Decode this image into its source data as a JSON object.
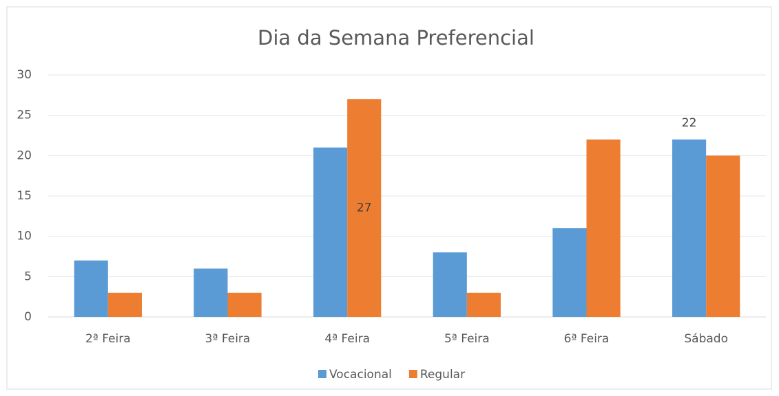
{
  "chart_data": {
    "type": "bar",
    "title": "Dia da Semana Preferencial",
    "categories": [
      "2ª Feira",
      "3ª Feira",
      "4ª Feira",
      "5ª Feira",
      "6ª Feira",
      "Sábado"
    ],
    "series": [
      {
        "name": "Vocacional",
        "color": "#5b9bd5",
        "values": [
          7,
          6,
          21,
          8,
          11,
          22
        ]
      },
      {
        "name": "Regular",
        "color": "#ed7d31",
        "values": [
          3,
          3,
          27,
          3,
          22,
          20
        ]
      }
    ],
    "ylim": [
      0,
      30
    ],
    "yticks": [
      0,
      5,
      10,
      15,
      20,
      25,
      30
    ],
    "grid": true,
    "legend": "bottom"
  }
}
